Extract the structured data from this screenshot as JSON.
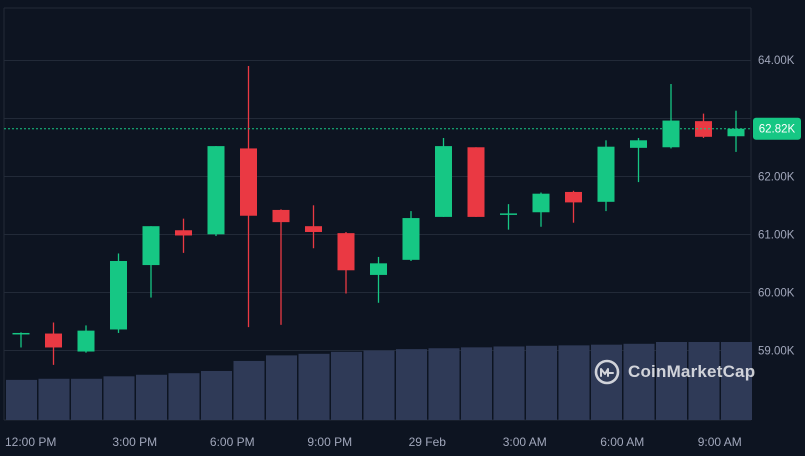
{
  "chart_data": {
    "type": "candlestick",
    "y_ticks": [
      {
        "value": 59000,
        "label": "59.00K"
      },
      {
        "value": 60000,
        "label": "60.00K"
      },
      {
        "value": 61000,
        "label": "61.00K"
      },
      {
        "value": 62000,
        "label": "62.00K"
      },
      {
        "value": 64000,
        "label": "64.00K"
      }
    ],
    "ylim": [
      57800,
      64900
    ],
    "x_ticks": [
      {
        "index": 0,
        "label": "12:00 PM"
      },
      {
        "index": 3.5,
        "label": "3:00 PM"
      },
      {
        "index": 6.5,
        "label": "6:00 PM"
      },
      {
        "index": 9.5,
        "label": "9:00 PM"
      },
      {
        "index": 12.5,
        "label": "29 Feb"
      },
      {
        "index": 15.5,
        "label": "3:00 AM"
      },
      {
        "index": 18.5,
        "label": "6:00 AM"
      },
      {
        "index": 21.5,
        "label": "9:00 AM"
      }
    ],
    "current_price": {
      "value": 62820,
      "label": "62.82K"
    },
    "candles": [
      {
        "open": 59300,
        "close": 59300,
        "high": 59310,
        "low": 59050
      },
      {
        "open": 59290,
        "close": 59050,
        "high": 59480,
        "low": 58750
      },
      {
        "open": 58980,
        "close": 59340,
        "high": 59430,
        "low": 58960
      },
      {
        "open": 59360,
        "close": 60540,
        "high": 60670,
        "low": 59300
      },
      {
        "open": 60470,
        "close": 61140,
        "high": 61140,
        "low": 59910
      },
      {
        "open": 61070,
        "close": 60980,
        "high": 61270,
        "low": 60680
      },
      {
        "open": 61000,
        "close": 62520,
        "high": 62520,
        "low": 60970
      },
      {
        "open": 62480,
        "close": 61320,
        "high": 63900,
        "low": 59400
      },
      {
        "open": 61420,
        "close": 61210,
        "high": 61430,
        "low": 59440
      },
      {
        "open": 61140,
        "close": 61040,
        "high": 61500,
        "low": 60760
      },
      {
        "open": 61020,
        "close": 60380,
        "high": 61040,
        "low": 59980
      },
      {
        "open": 60300,
        "close": 60500,
        "high": 60610,
        "low": 59820
      },
      {
        "open": 60560,
        "close": 61280,
        "high": 61400,
        "low": 60540
      },
      {
        "open": 61300,
        "close": 62520,
        "high": 62660,
        "low": 61300
      },
      {
        "open": 62500,
        "close": 61300,
        "high": 62500,
        "low": 61300
      },
      {
        "open": 61340,
        "close": 61360,
        "high": 61520,
        "low": 61080
      },
      {
        "open": 61380,
        "close": 61700,
        "high": 61720,
        "low": 61130
      },
      {
        "open": 61730,
        "close": 61550,
        "high": 61750,
        "low": 61200
      },
      {
        "open": 61560,
        "close": 62510,
        "high": 62620,
        "low": 61400
      },
      {
        "open": 62490,
        "close": 62620,
        "high": 62660,
        "low": 61900
      },
      {
        "open": 62500,
        "close": 62960,
        "high": 63590,
        "low": 62480
      },
      {
        "open": 62950,
        "close": 62680,
        "high": 63080,
        "low": 62660
      },
      {
        "open": 62690,
        "close": 62820,
        "high": 63130,
        "low": 62420
      }
    ],
    "volume": [
      0.18,
      0.185,
      0.185,
      0.196,
      0.203,
      0.21,
      0.22,
      0.265,
      0.29,
      0.297,
      0.306,
      0.312,
      0.318,
      0.322,
      0.326,
      0.33,
      0.333,
      0.335,
      0.338,
      0.342,
      0.35,
      0.35,
      0.35
    ],
    "grid": true,
    "colors": {
      "up": "#16c784",
      "down": "#ea3943",
      "background": "#0d1421",
      "grid": "#222a38",
      "axis_text": "#a1a7bb",
      "volume": "#2f3a57"
    }
  },
  "watermark": {
    "icon": "coinmarketcap-logo-icon",
    "text": "CoinMarketCap"
  }
}
